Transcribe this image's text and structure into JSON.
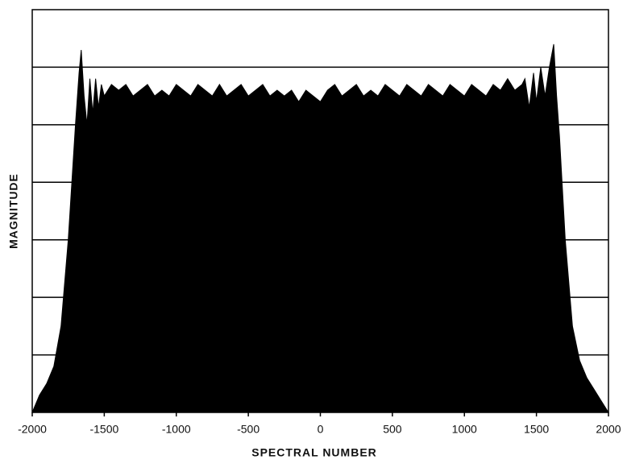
{
  "chart_data": {
    "type": "area",
    "x_label": "SPECTRAL NUMBER",
    "y_label": "MAGNITUDE",
    "color": "#000000",
    "grid": true,
    "x": [
      -2000,
      -1950,
      -1900,
      -1850,
      -1800,
      -1750,
      -1700,
      -1675,
      -1660,
      -1640,
      -1620,
      -1600,
      -1580,
      -1560,
      -1540,
      -1520,
      -1500,
      -1450,
      -1400,
      -1350,
      -1300,
      -1250,
      -1200,
      -1150,
      -1100,
      -1050,
      -1000,
      -950,
      -900,
      -850,
      -800,
      -750,
      -700,
      -650,
      -600,
      -550,
      -500,
      -450,
      -400,
      -350,
      -300,
      -250,
      -200,
      -150,
      -100,
      -50,
      0,
      50,
      100,
      150,
      200,
      250,
      300,
      350,
      400,
      450,
      500,
      550,
      600,
      650,
      700,
      750,
      800,
      850,
      900,
      950,
      1000,
      1050,
      1100,
      1150,
      1200,
      1250,
      1300,
      1350,
      1400,
      1420,
      1450,
      1480,
      1500,
      1530,
      1560,
      1590,
      1620,
      1640,
      1660,
      1700,
      1750,
      1800,
      1850,
      1900,
      1950,
      2000
    ],
    "values": [
      0,
      0.3,
      0.5,
      0.8,
      1.5,
      3.0,
      5.0,
      5.9,
      6.3,
      5.5,
      5.0,
      5.8,
      5.2,
      5.8,
      5.3,
      5.7,
      5.5,
      5.7,
      5.6,
      5.7,
      5.5,
      5.6,
      5.7,
      5.5,
      5.6,
      5.5,
      5.7,
      5.6,
      5.5,
      5.7,
      5.6,
      5.5,
      5.7,
      5.5,
      5.6,
      5.7,
      5.5,
      5.6,
      5.7,
      5.5,
      5.6,
      5.5,
      5.6,
      5.4,
      5.6,
      5.5,
      5.4,
      5.6,
      5.7,
      5.5,
      5.6,
      5.7,
      5.5,
      5.6,
      5.5,
      5.7,
      5.6,
      5.5,
      5.7,
      5.6,
      5.5,
      5.7,
      5.6,
      5.5,
      5.7,
      5.6,
      5.5,
      5.7,
      5.6,
      5.5,
      5.7,
      5.6,
      5.8,
      5.6,
      5.7,
      5.8,
      5.3,
      5.9,
      5.4,
      6.0,
      5.5,
      6.0,
      6.4,
      5.5,
      4.8,
      3.0,
      1.5,
      0.9,
      0.6,
      0.4,
      0.2,
      0
    ],
    "xlim": [
      -2000,
      2000
    ],
    "ylim": [
      0,
      7
    ],
    "xticks": [
      -2000,
      -1500,
      -1000,
      -500,
      0,
      500,
      1000,
      1500,
      2000
    ],
    "yticks": [
      1,
      2,
      3,
      4,
      5,
      6
    ]
  }
}
